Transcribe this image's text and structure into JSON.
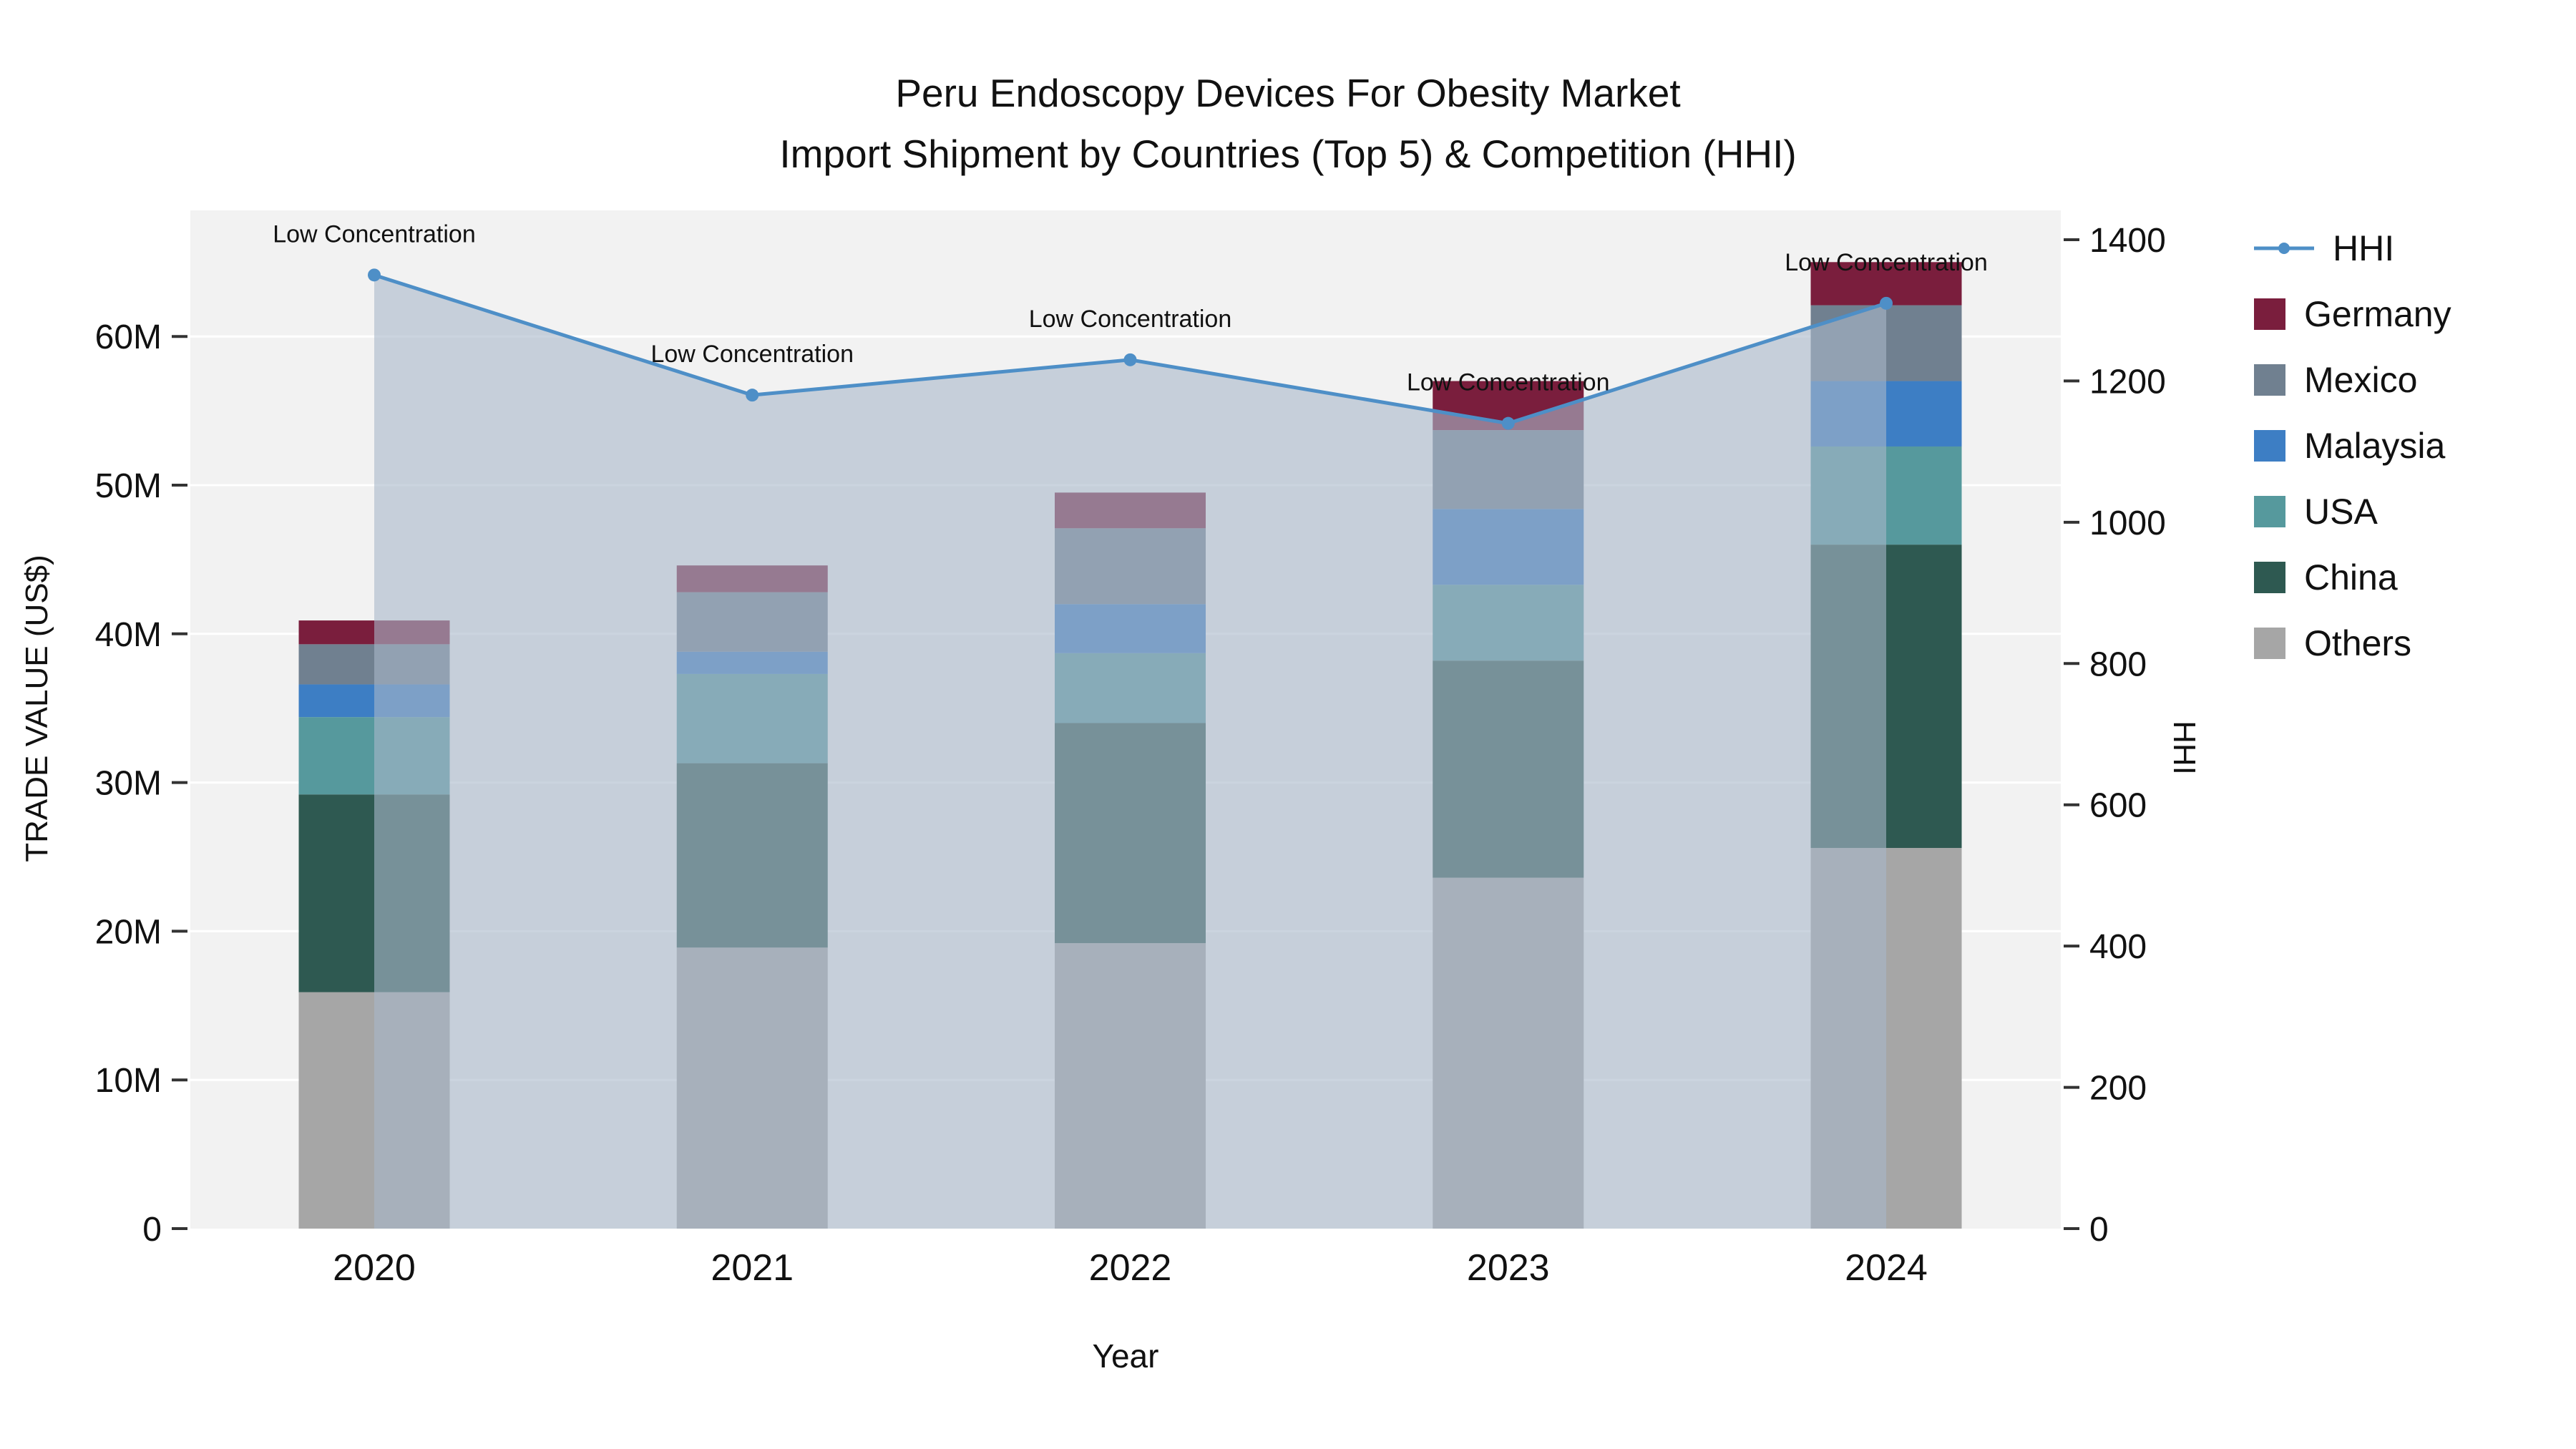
{
  "chart_data": {
    "type": "bar",
    "title": "Peru Endoscopy Devices For Obesity Market",
    "subtitle": "Import Shipment by Countries (Top 5) & Competition (HHI)",
    "xlabel": "Year",
    "ylabel_left": "TRADE VALUE (US$)",
    "ylabel_right": "HHI",
    "values_unit": "millions US$",
    "categories": [
      "2020",
      "2021",
      "2022",
      "2023",
      "2024"
    ],
    "series": [
      {
        "name": "Others",
        "color": "#a6a6a6",
        "values": [
          15.9,
          18.9,
          19.2,
          23.6,
          25.6
        ]
      },
      {
        "name": "China",
        "color": "#2e5951",
        "values": [
          13.3,
          12.4,
          14.8,
          14.6,
          20.4
        ]
      },
      {
        "name": "USA",
        "color": "#56999d",
        "values": [
          5.2,
          6.0,
          4.7,
          5.1,
          6.6
        ]
      },
      {
        "name": "Malaysia",
        "color": "#3d7ec4",
        "values": [
          2.2,
          1.5,
          3.3,
          5.1,
          4.4
        ]
      },
      {
        "name": "Mexico",
        "color": "#708090",
        "values": [
          2.7,
          4.0,
          5.1,
          5.3,
          5.1
        ]
      },
      {
        "name": "Germany",
        "color": "#7a1e3d",
        "values": [
          1.6,
          1.8,
          2.4,
          3.3,
          2.9
        ]
      }
    ],
    "hhi": {
      "name": "HHI",
      "line_color": "#4e8fc7",
      "area_color": "#a9b8c9",
      "values": [
        1350,
        1180,
        1230,
        1140,
        1310
      ]
    },
    "annotations": [
      "Low Concentration",
      "Low Concentration",
      "Low Concentration",
      "Low Concentration",
      "Low Concentration"
    ],
    "y_left": {
      "ticks": [
        0,
        10,
        20,
        30,
        40,
        50,
        60
      ],
      "tick_labels": [
        "0",
        "10M",
        "20M",
        "30M",
        "40M",
        "50M",
        "60M"
      ],
      "range": [
        0,
        68.5
      ]
    },
    "y_right": {
      "ticks": [
        0,
        200,
        400,
        600,
        800,
        1000,
        1200,
        1400
      ],
      "tick_labels": [
        "0",
        "200",
        "400",
        "600",
        "800",
        "1000",
        "1200",
        "1400"
      ],
      "range": [
        0,
        1400
      ]
    },
    "legend_order": [
      "HHI",
      "Germany",
      "Mexico",
      "Malaysia",
      "USA",
      "China",
      "Others"
    ],
    "plot_bg": "#f2f2f2",
    "grid_color": "#ffffff",
    "tick_color": "#333333",
    "text_color": "#111111"
  }
}
